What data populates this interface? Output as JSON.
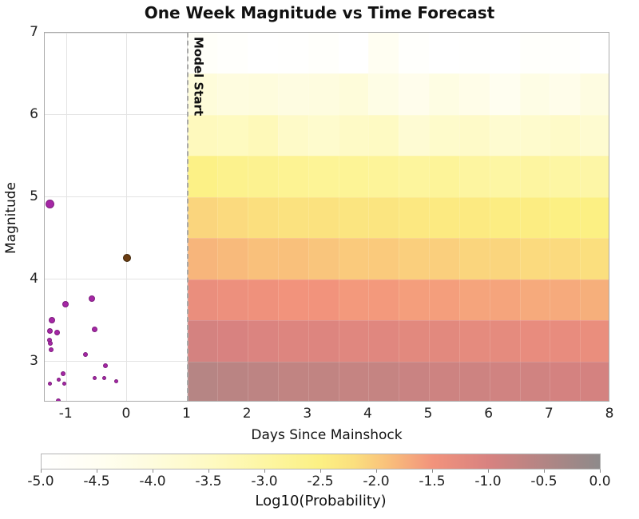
{
  "title": "One Week Magnitude vs Time Forecast",
  "axes": {
    "xlabel": "Days Since Mainshock",
    "ylabel": "Magnitude",
    "x_ticks": [
      "-1",
      "0",
      "1",
      "2",
      "3",
      "4",
      "5",
      "6",
      "7",
      "8"
    ],
    "x_tick_values": [
      -1,
      0,
      1,
      2,
      3,
      4,
      5,
      6,
      7,
      8
    ],
    "y_ticks": [
      "3",
      "4",
      "5",
      "6",
      "7"
    ],
    "y_tick_values": [
      3,
      4,
      5,
      6,
      7
    ],
    "xlim": [
      -1.36,
      8.0
    ],
    "ylim": [
      2.5,
      7.0
    ],
    "grid": true,
    "gridline_color": "#e3e3e3"
  },
  "model_start": {
    "label": "Model Start",
    "x": 1,
    "line_color": "#a9a9a9",
    "line_style": "dashed"
  },
  "colorbar": {
    "label": "Log10(Probability)",
    "min": -5.0,
    "max": 0.0,
    "tick_labels": [
      "-5.0",
      "-4.5",
      "-4.0",
      "-3.5",
      "-3.0",
      "-2.5",
      "-2.0",
      "-1.5",
      "-1.0",
      "-0.5",
      "0.0"
    ],
    "tick_values": [
      -5.0,
      -4.5,
      -4.0,
      -3.5,
      -3.0,
      -2.5,
      -2.0,
      -1.5,
      -1.0,
      -0.5,
      0.0
    ],
    "stops": [
      [
        0.0,
        "#ffffff"
      ],
      [
        0.1,
        "#fffef2"
      ],
      [
        0.2,
        "#fefcdd"
      ],
      [
        0.3,
        "#fefac3"
      ],
      [
        0.4,
        "#fdf6a3"
      ],
      [
        0.5,
        "#fcf083"
      ],
      [
        0.56,
        "#fbdf7e"
      ],
      [
        0.62,
        "#f9c07b"
      ],
      [
        0.7,
        "#f2937c"
      ],
      [
        0.8,
        "#d88280"
      ],
      [
        0.9,
        "#b28584"
      ],
      [
        1.0,
        "#8e8a8a"
      ]
    ]
  },
  "chart_data": {
    "type": "heatmap",
    "title": "One Week Magnitude vs Time Forecast",
    "xlabel": "Days Since Mainshock",
    "ylabel": "Magnitude",
    "value_label": "Log10(Probability)",
    "heatmap": {
      "x_bin_edges_days": [
        1.0,
        1.5,
        2.0,
        2.5,
        3.0,
        3.5,
        4.0,
        4.5,
        5.0,
        5.5,
        6.0,
        6.5,
        7.0,
        7.5,
        8.0
      ],
      "magnitude_bin_edges": [
        2.5,
        3.0,
        3.5,
        4.0,
        4.5,
        5.0,
        5.5,
        6.0,
        6.5,
        7.0
      ],
      "log10_probability_rows_top_to_bottom": [
        [
          -4.75,
          -4.9,
          -5.0,
          -4.95,
          -4.85,
          -5.0,
          -4.5,
          -4.9,
          -5.0,
          -4.95,
          -5.0,
          -4.85,
          -4.9,
          -5.0
        ],
        [
          -3.95,
          -4.05,
          -4.0,
          -4.1,
          -4.05,
          -3.95,
          -4.2,
          -4.35,
          -4.15,
          -4.25,
          -4.45,
          -4.2,
          -4.3,
          -4.1
        ],
        [
          -3.4,
          -3.45,
          -3.35,
          -3.6,
          -3.7,
          -3.55,
          -3.5,
          -3.8,
          -3.65,
          -3.6,
          -3.75,
          -3.7,
          -3.6,
          -3.75
        ],
        [
          -2.55,
          -2.65,
          -2.7,
          -2.75,
          -2.8,
          -2.8,
          -2.85,
          -2.9,
          -2.85,
          -2.95,
          -3.0,
          -2.95,
          -3.0,
          -3.05
        ],
        [
          -2.1,
          -2.15,
          -2.2,
          -2.25,
          -2.25,
          -2.3,
          -2.3,
          -2.35,
          -2.4,
          -2.4,
          -2.45,
          -2.45,
          -2.5,
          -2.5
        ],
        [
          -1.8,
          -1.85,
          -1.9,
          -1.9,
          -1.95,
          -2.0,
          -2.0,
          -2.05,
          -2.05,
          -2.1,
          -2.1,
          -2.15,
          -2.15,
          -2.2
        ],
        [
          -1.35,
          -1.4,
          -1.45,
          -1.5,
          -1.5,
          -1.55,
          -1.55,
          -1.6,
          -1.6,
          -1.65,
          -1.65,
          -1.7,
          -1.7,
          -1.75
        ],
        [
          -0.95,
          -1.0,
          -1.05,
          -1.1,
          -1.1,
          -1.15,
          -1.15,
          -1.2,
          -1.2,
          -1.25,
          -1.25,
          -1.3,
          -1.3,
          -1.35
        ],
        [
          -0.55,
          -0.6,
          -0.65,
          -0.7,
          -0.7,
          -0.75,
          -0.75,
          -0.8,
          -0.85,
          -0.85,
          -0.9,
          -0.9,
          -0.95,
          -0.95
        ]
      ]
    },
    "scatter": {
      "observed_events": {
        "color": "#a527a5",
        "edge_color": "#7d1d7d",
        "points_day_mag_diameter": [
          [
            -1.28,
            4.92,
            11
          ],
          [
            -1.02,
            3.7,
            8
          ],
          [
            -0.58,
            3.76,
            8
          ],
          [
            -1.24,
            3.5,
            8
          ],
          [
            -1.27,
            3.37,
            7
          ],
          [
            -1.15,
            3.35,
            7
          ],
          [
            -1.28,
            3.26,
            6
          ],
          [
            -1.27,
            3.22,
            6
          ],
          [
            -1.26,
            3.14,
            6
          ],
          [
            -0.54,
            3.39,
            7
          ],
          [
            -0.68,
            3.08,
            6
          ],
          [
            -0.36,
            2.95,
            6
          ],
          [
            -1.06,
            2.85,
            6
          ],
          [
            -1.13,
            2.78,
            5
          ],
          [
            -1.28,
            2.73,
            5
          ],
          [
            -1.04,
            2.73,
            5
          ],
          [
            -0.53,
            2.8,
            5
          ],
          [
            -0.38,
            2.8,
            5
          ],
          [
            -0.18,
            2.76,
            5
          ],
          [
            -1.14,
            2.52,
            6
          ]
        ]
      },
      "mainshock": {
        "color": "#6b3d12",
        "edge_color": "#3e2408",
        "points_day_mag_diameter": [
          [
            0.0,
            4.26,
            10
          ]
        ]
      }
    }
  }
}
